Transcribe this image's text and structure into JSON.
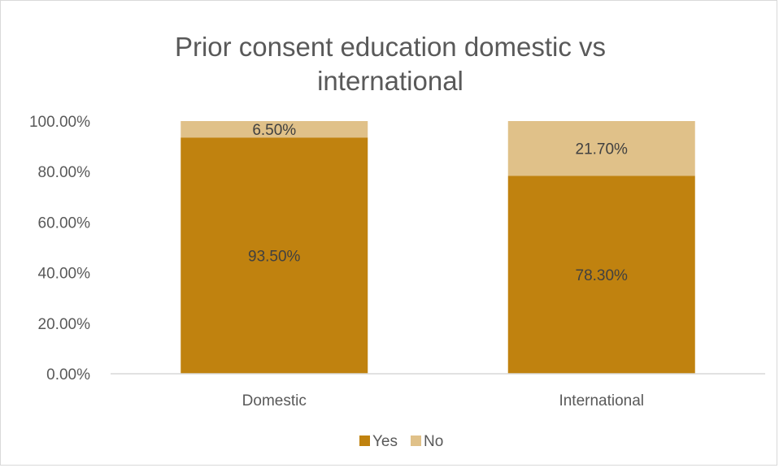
{
  "chart_data": {
    "type": "bar",
    "stacked": true,
    "title": "Prior consent education domestic vs international",
    "title_lines": [
      "Prior consent education domestic vs",
      "international"
    ],
    "categories": [
      "Domestic",
      "International"
    ],
    "series": [
      {
        "name": "Yes",
        "values": [
          93.5,
          78.3
        ],
        "labels": [
          "93.50%",
          "78.30%"
        ],
        "color": "#c0820f"
      },
      {
        "name": "No",
        "values": [
          6.5,
          21.7
        ],
        "labels": [
          "6.50%",
          "21.70%"
        ],
        "color": "#e0c189"
      }
    ],
    "ylim": [
      0,
      100
    ],
    "yticks": [
      0,
      20,
      40,
      60,
      80,
      100
    ],
    "ytick_labels": [
      "0.00%",
      "20.00%",
      "40.00%",
      "60.00%",
      "80.00%",
      "100.00%"
    ],
    "grid": false,
    "legend": "bottom",
    "xlabel": "",
    "ylabel": ""
  }
}
